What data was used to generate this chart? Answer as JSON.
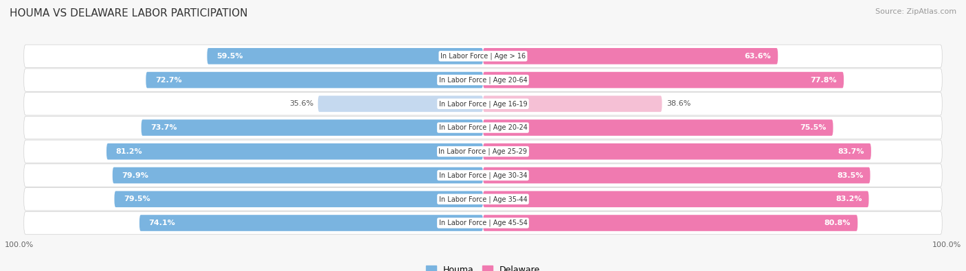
{
  "title": "HOUMA VS DELAWARE LABOR PARTICIPATION",
  "source": "Source: ZipAtlas.com",
  "categories": [
    "In Labor Force | Age > 16",
    "In Labor Force | Age 20-64",
    "In Labor Force | Age 16-19",
    "In Labor Force | Age 20-24",
    "In Labor Force | Age 25-29",
    "In Labor Force | Age 30-34",
    "In Labor Force | Age 35-44",
    "In Labor Force | Age 45-54"
  ],
  "houma_values": [
    59.5,
    72.7,
    35.6,
    73.7,
    81.2,
    79.9,
    79.5,
    74.1
  ],
  "delaware_values": [
    63.6,
    77.8,
    38.6,
    75.5,
    83.7,
    83.5,
    83.2,
    80.8
  ],
  "houma_color": "#7ab4e0",
  "houma_light_color": "#c5d9ef",
  "delaware_color": "#f07ab0",
  "delaware_light_color": "#f5c0d5",
  "bar_height": 0.68,
  "bg_color": "#f7f7f7",
  "row_bg_color": "#efefef",
  "legend_houma": "Houma",
  "legend_delaware": "Delaware",
  "x_max": 100.0,
  "title_fontsize": 11,
  "label_fontsize": 8,
  "tick_fontsize": 8,
  "source_fontsize": 8
}
